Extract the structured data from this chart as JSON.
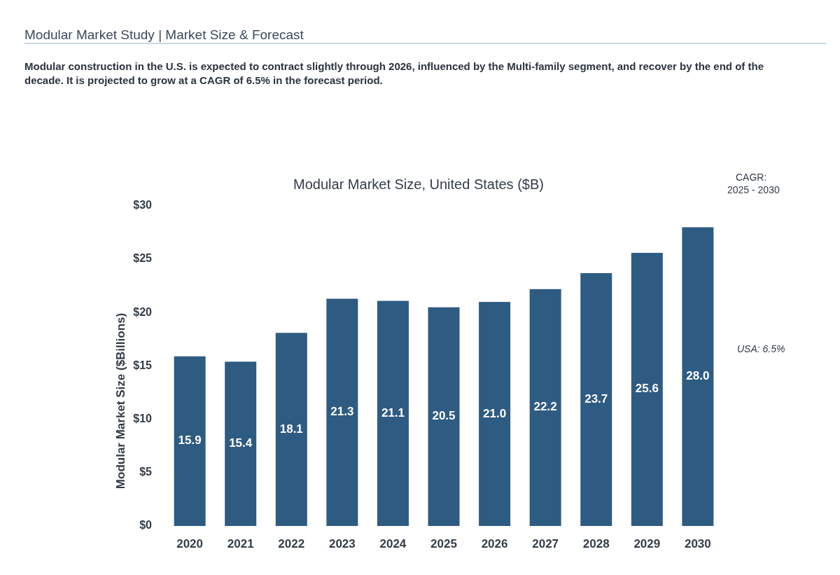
{
  "chart_data": {
    "type": "bar",
    "title": "Modular Market Size, United States ($B)",
    "subtitle": "Modular construction in the U.S. is expected to contract slightly through 2026, influenced by the Multi-family segment, and recover by the end of the decade. It is projected to grow at a CAGR of 6.5% in the forecast period.",
    "annotations": [
      "Modular Market Study | Market Size & Forecast",
      "CAGR:",
      "2025 - 2030",
      "USA: 6.5%"
    ],
    "ylabel": "Modular Market Size ($Billions)",
    "categories": [
      "2020",
      "2021",
      "2022",
      "2023",
      "2024",
      "2025",
      "2026",
      "2027",
      "2028",
      "2029",
      "2030"
    ],
    "values": [
      15.9,
      15.4,
      18.1,
      21.3,
      21.1,
      20.5,
      21.0,
      22.2,
      23.7,
      25.6,
      28.0
    ],
    "color": "#2e5b82",
    "ylim": [
      0,
      30
    ],
    "yticks": [
      {
        "value": 0,
        "label": "$0"
      },
      {
        "value": 5,
        "label": "$5"
      },
      {
        "value": 10,
        "label": "$10"
      },
      {
        "value": 15,
        "label": "$15"
      },
      {
        "value": 20,
        "label": "$20"
      },
      {
        "value": 25,
        "label": "$25"
      },
      {
        "value": 30,
        "label": "$30"
      }
    ],
    "value_labels": [
      "15.9",
      "15.4",
      "18.1",
      "21.3",
      "21.1",
      "20.5",
      "21.0",
      "22.2",
      "23.7",
      "25.6",
      "28.0"
    ],
    "grid": false
  }
}
